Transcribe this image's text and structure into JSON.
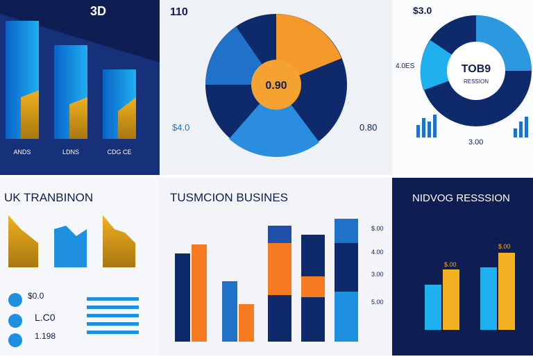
{
  "panels": [
    {
      "title": "3D",
      "labels": [
        "ANDS",
        "LDNS",
        "CDG CE"
      ]
    },
    {
      "title": "110",
      "center": "0.90",
      "labels": [
        "$4.0",
        "0.80"
      ]
    },
    {
      "title": "$3.0",
      "center": "TOB9",
      "subtitle": "RESSION",
      "labels": [
        "4.0ES",
        "3.00"
      ]
    },
    {
      "title": "UK TRANBINON",
      "labels": [
        "$0.0",
        "L.C0",
        "1.198"
      ]
    },
    {
      "title": "TUSMCION BUSINES",
      "labels": [
        "$.00",
        "4.00",
        "3.00",
        "5.00"
      ]
    },
    {
      "title": "NIDVOG RESSSION",
      "labels": [
        "$.00",
        "$.00"
      ]
    }
  ]
}
